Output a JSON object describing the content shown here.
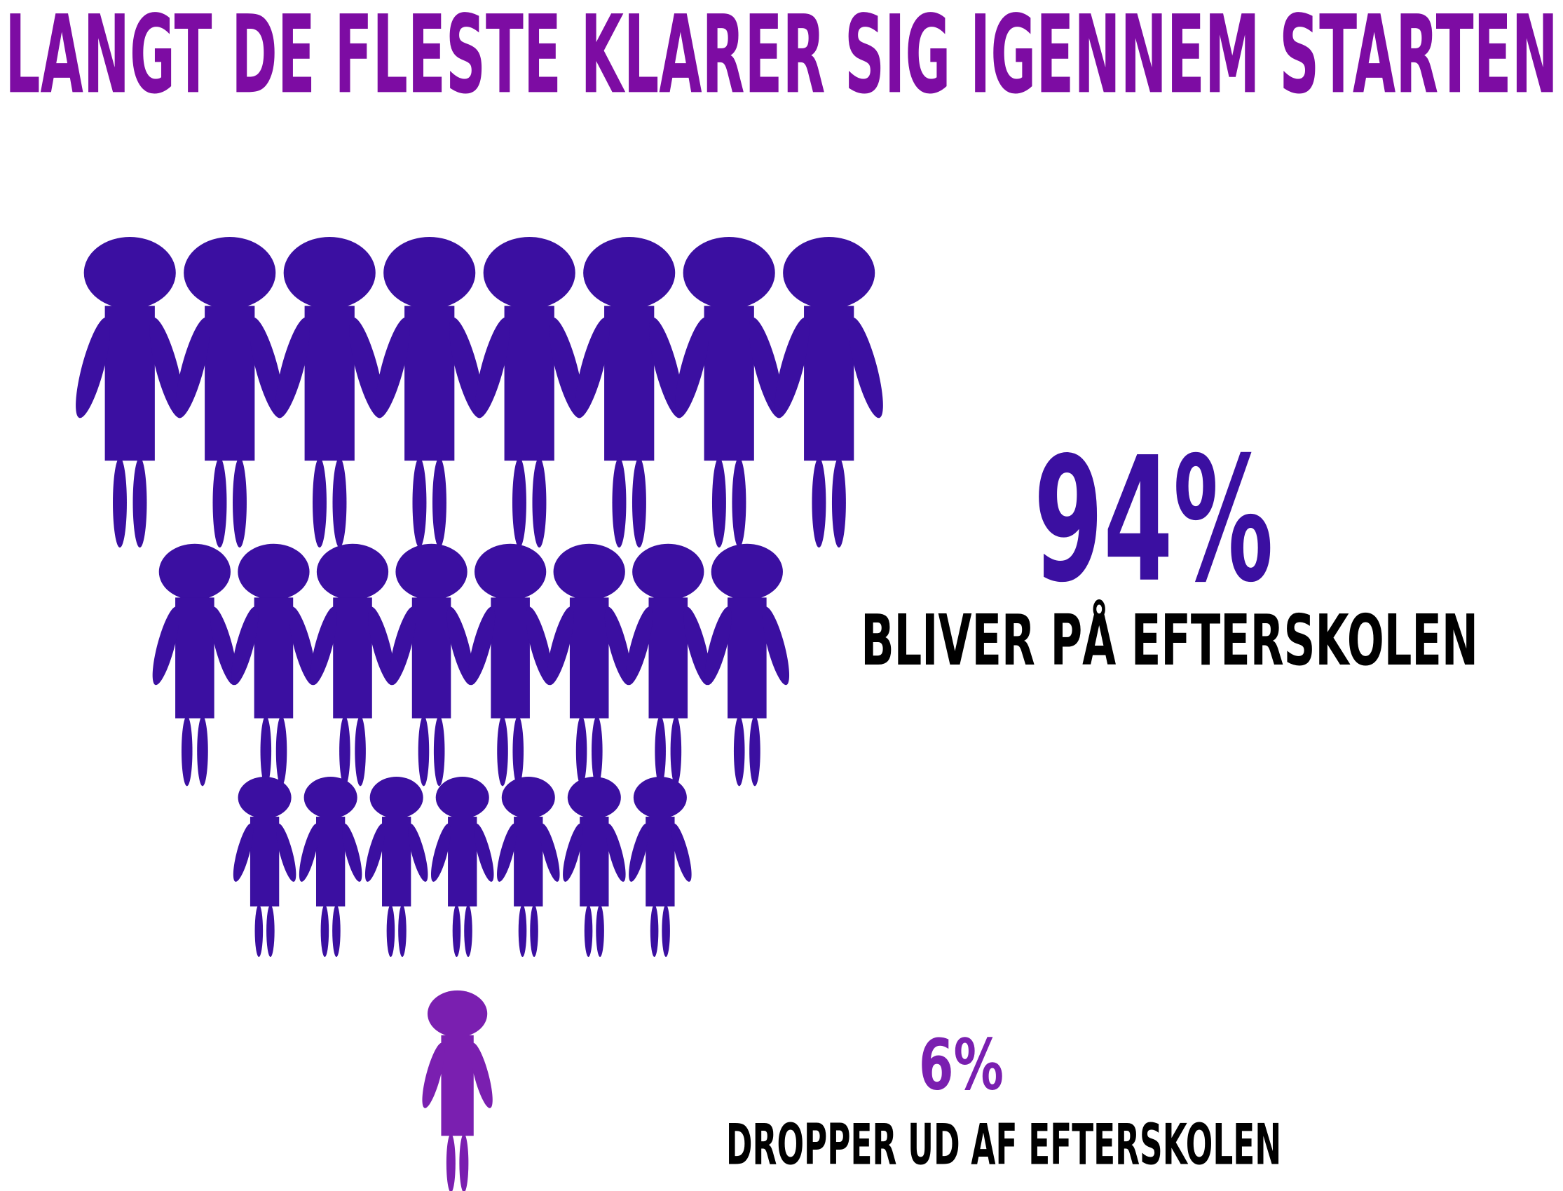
{
  "chart_data": {
    "type": "pictogram",
    "title": "LANGT DE FLESTE KLARER SIG IGENNEM STARTEN",
    "categories": [
      "BLIVER PÅ EFTERSKOLEN",
      "DROPPER UD AF EFTERSKOLEN"
    ],
    "values": [
      94,
      6
    ],
    "value_labels": [
      "94%",
      "6%"
    ],
    "colors": [
      "#3b0fa1",
      "#7a1fb0"
    ],
    "title_color": "#7d0ca3"
  }
}
